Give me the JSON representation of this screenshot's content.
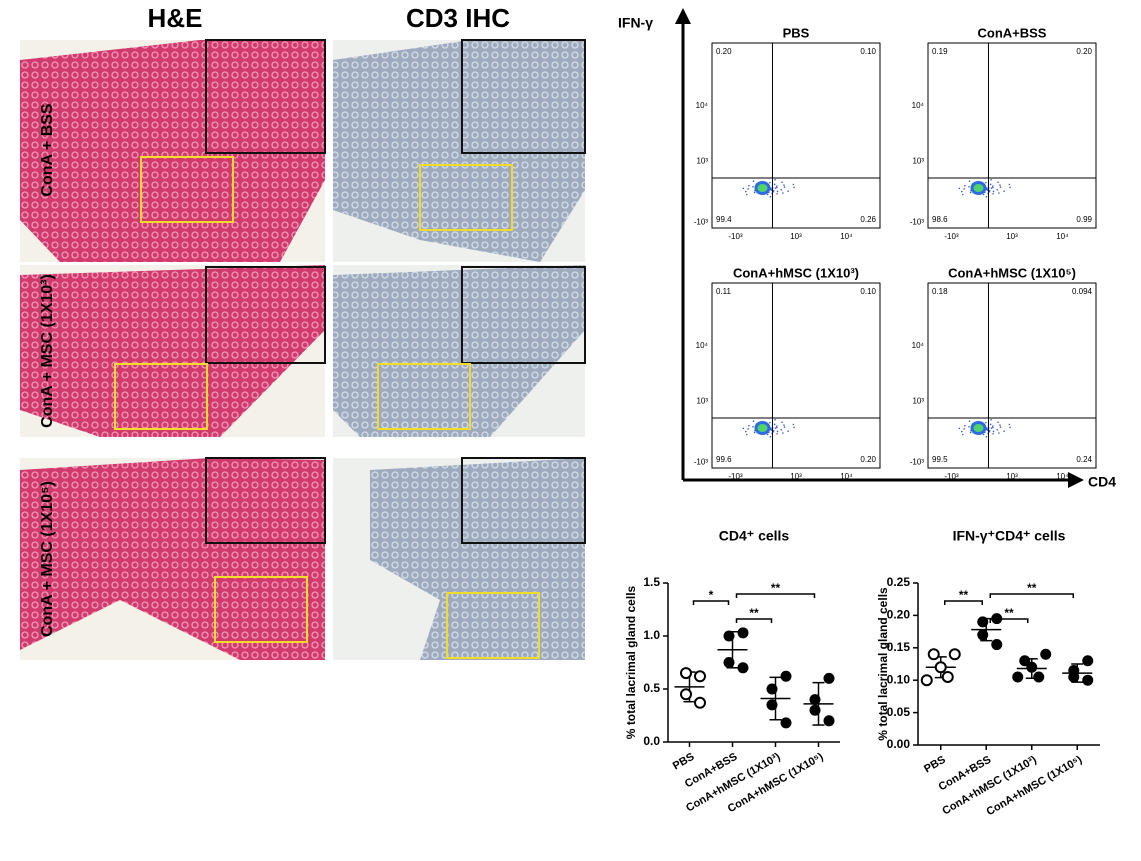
{
  "histology": {
    "columns": [
      "H&E",
      "CD3 IHC"
    ],
    "rows": [
      "ConA + BSS",
      "ConA + MSC (1X10³)",
      "ConA + MSC (1X10⁵)"
    ]
  },
  "flow": {
    "y_label": "IFN-γ",
    "x_label": "CD4",
    "y_ticks": [
      "10⁴",
      "10³",
      "-10³"
    ],
    "x_ticks": [
      "-10³",
      "10³",
      "10⁴"
    ],
    "panels": [
      {
        "title": "PBS",
        "quadrants": [
          "0.20",
          "0.10",
          "99.4",
          "0.26"
        ]
      },
      {
        "title": "ConA+BSS",
        "quadrants": [
          "0.19",
          "0.20",
          "98.6",
          "0.99"
        ]
      },
      {
        "title": "ConA+hMSC (1X10³)",
        "quadrants": [
          "0.11",
          "0.10",
          "99.6",
          "0.20"
        ]
      },
      {
        "title": "ConA+hMSC (1X10⁵)",
        "quadrants": [
          "0.18",
          "0.094",
          "99.5",
          "0.24"
        ]
      }
    ]
  },
  "chart_data": [
    {
      "type": "dot",
      "title": "CD4⁺ cells",
      "y_label": "% total lacrimal gland cells",
      "color": "#000000",
      "categories": [
        "PBS",
        "ConA+BSS",
        "ConA+hMSC (1X10³)",
        "ConA+hMSC (1X10⁵)"
      ],
      "markers": [
        "open",
        "filled",
        "filled",
        "filled"
      ],
      "points": [
        [
          0.62,
          0.65,
          0.45,
          0.37
        ],
        [
          1.03,
          1.0,
          0.75,
          0.7
        ],
        [
          0.62,
          0.5,
          0.35,
          0.18
        ],
        [
          0.6,
          0.4,
          0.3,
          0.2
        ]
      ],
      "means": [
        0.52,
        0.87,
        0.41,
        0.36
      ],
      "sd": [
        0.14,
        0.17,
        0.2,
        0.2
      ],
      "ylim": [
        0,
        1.5
      ],
      "yticks": [
        {
          "value": 0,
          "label": "0.0"
        },
        0.5,
        {
          "value": 1,
          "label": "1.0"
        },
        1.5
      ],
      "significance": [
        {
          "from": 0,
          "to": 1,
          "label": "*"
        },
        {
          "from": 1,
          "to": 2,
          "label": "**"
        },
        {
          "from": 1,
          "to": 3,
          "label": "**"
        }
      ]
    },
    {
      "type": "dot",
      "title": "IFN-γ⁺CD4⁺ cells",
      "y_label": "% total lacrimal gland cells",
      "color": "#000000",
      "categories": [
        "PBS",
        "ConA+BSS",
        "ConA+hMSC (1X10³)",
        "ConA+hMSC (1X10⁵)"
      ],
      "markers": [
        "open",
        "filled",
        "filled",
        "filled"
      ],
      "points": [
        [
          0.14,
          0.14,
          0.12,
          0.105,
          0.1
        ],
        [
          0.195,
          0.19,
          0.17,
          0.155
        ],
        [
          0.14,
          0.13,
          0.12,
          0.105,
          0.105
        ],
        [
          0.13,
          0.115,
          0.105,
          0.1
        ]
      ],
      "means": [
        0.12,
        0.178,
        0.118,
        0.111
      ],
      "sd": [
        0.016,
        0.017,
        0.015,
        0.014
      ],
      "ylim": [
        0,
        0.25
      ],
      "yticks": [
        {
          "value": 0,
          "label": "0.00"
        },
        0.05,
        {
          "value": 0.1,
          "label": "0.10"
        },
        0.15,
        {
          "value": 0.2,
          "label": "0.20"
        },
        0.25
      ],
      "significance": [
        {
          "from": 0,
          "to": 1,
          "label": "**"
        },
        {
          "from": 1,
          "to": 2,
          "label": "**"
        },
        {
          "from": 1,
          "to": 3,
          "label": "**"
        }
      ]
    }
  ]
}
